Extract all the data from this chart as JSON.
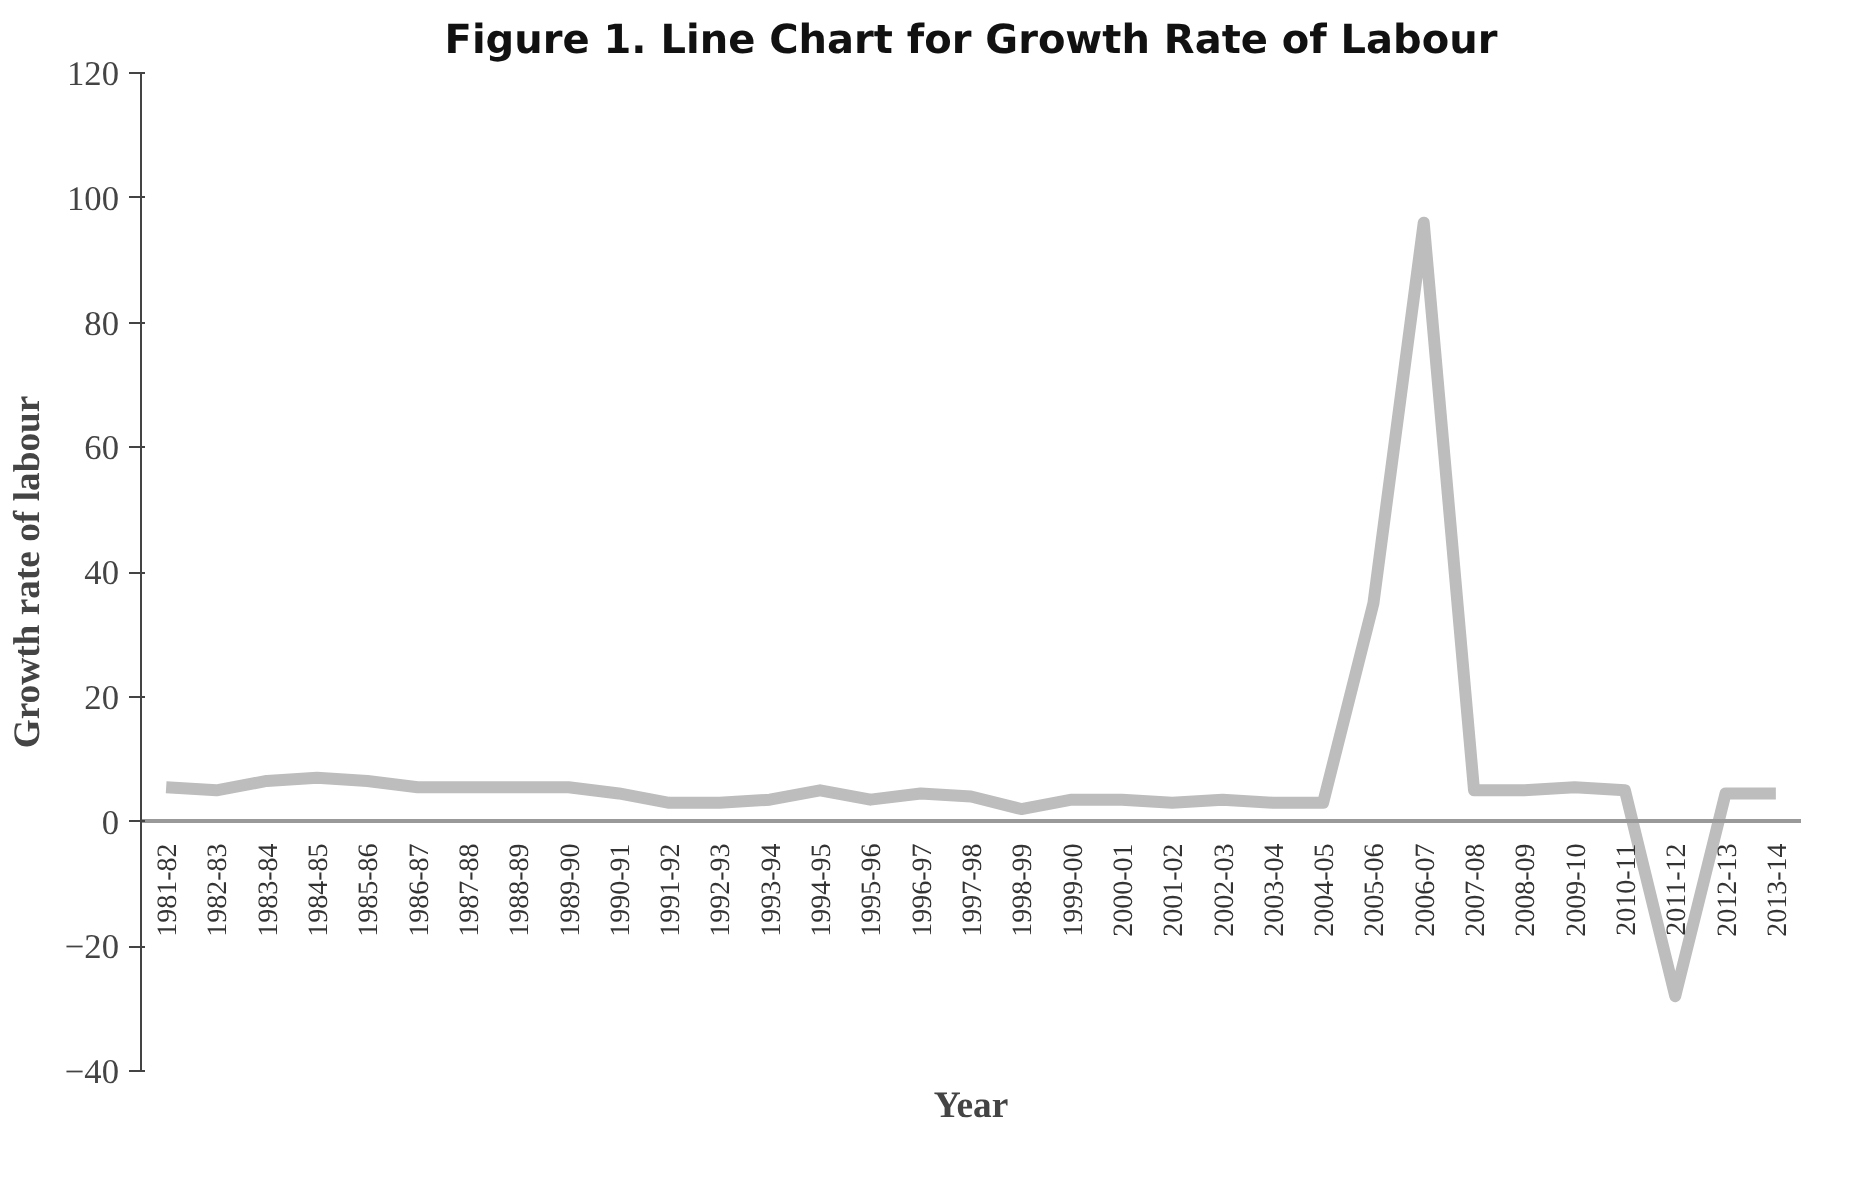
{
  "chart_data": {
    "type": "line",
    "title": "Figure 1. Line Chart for Growth Rate of Labour",
    "xlabel": "Year",
    "ylabel": "Growth rate of labour",
    "categories": [
      "1981-82",
      "1982-83",
      "1983-84",
      "1984-85",
      "1985-86",
      "1986-87",
      "1987-88",
      "1988-89",
      "1989-90",
      "1990-91",
      "1991-92",
      "1992-93",
      "1993-94",
      "1994-95",
      "1995-96",
      "1996-97",
      "1997-98",
      "1998-99",
      "1999-00",
      "2000-01",
      "2001-02",
      "2002-03",
      "2003-04",
      "2004-05",
      "2005-06",
      "2006-07",
      "2007-08",
      "2008-09",
      "2009-10",
      "2010-11",
      "2011-12",
      "2012-13",
      "2013-14"
    ],
    "series": [
      {
        "color": "#bdbdbd",
        "values": [
          5.5,
          5,
          6.5,
          7,
          6.5,
          5.5,
          5.5,
          5.5,
          5.5,
          4.5,
          3,
          3,
          3.5,
          5,
          3.5,
          4.5,
          4,
          2,
          3.5,
          3.5,
          3,
          3.5,
          3,
          3,
          35,
          96,
          5,
          5,
          5.5,
          5,
          -28,
          4.5,
          4.5
        ]
      }
    ],
    "ylim": [
      -40,
      120
    ],
    "yticks": [
      -40,
      -20,
      0,
      20,
      40,
      60,
      80,
      100,
      120
    ],
    "grid": false,
    "marker": "none",
    "line_style": "solid"
  }
}
